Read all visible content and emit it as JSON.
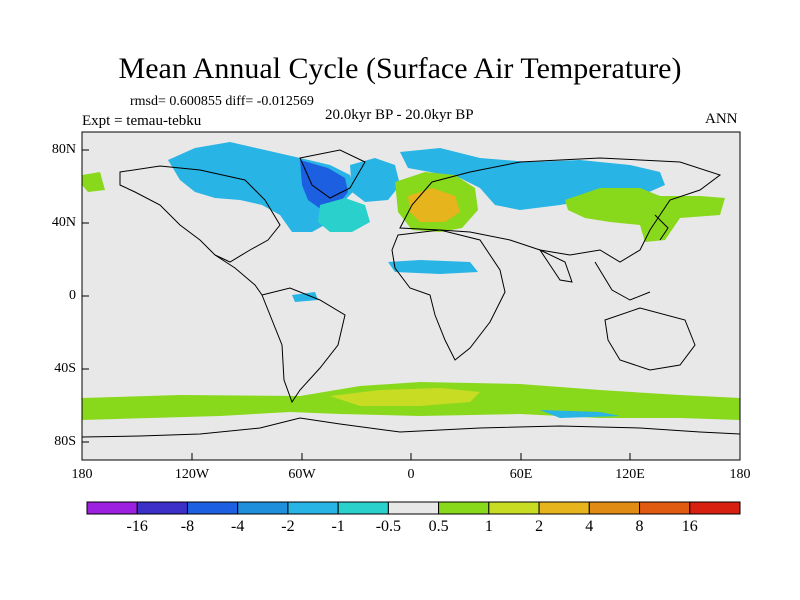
{
  "title": "Mean Annual Cycle (Surface Air Temperature)",
  "stats": "rmsd= 0.600855 diff= -0.012569",
  "period": "20.0kyr BP - 20.0kyr BP",
  "experiment": "Expt = temau-tebku",
  "season": "ANN",
  "map": {
    "background": "#e8e8e8",
    "lon_ticks": [
      "180",
      "120W",
      "60W",
      "0",
      "60E",
      "120E",
      "180"
    ],
    "lat_ticks": [
      "80N",
      "40N",
      "0",
      "40S",
      "80S"
    ]
  },
  "colorbar": {
    "colors": [
      "#9d1fe0",
      "#3c30c8",
      "#1c5fe0",
      "#1f8fdc",
      "#28b4e4",
      "#2ad0cc",
      "#e8e8e8",
      "#88d81c",
      "#c8dc24",
      "#e6b41c",
      "#e08c14",
      "#e05a10",
      "#d82010"
    ],
    "labels": [
      "-16",
      "-8",
      "-4",
      "-2",
      "-1",
      "-0.5",
      "0.5",
      "1",
      "2",
      "4",
      "8",
      "16"
    ]
  },
  "regions": [
    {
      "name": "north-america-anomaly",
      "color": "#28b4e4"
    },
    {
      "name": "greenland-anomaly",
      "color": "#1c5fe0"
    },
    {
      "name": "europe-warm-anomaly",
      "color": "#e6b41c"
    },
    {
      "name": "southern-ocean-warm-band",
      "color": "#88d81c"
    }
  ]
}
